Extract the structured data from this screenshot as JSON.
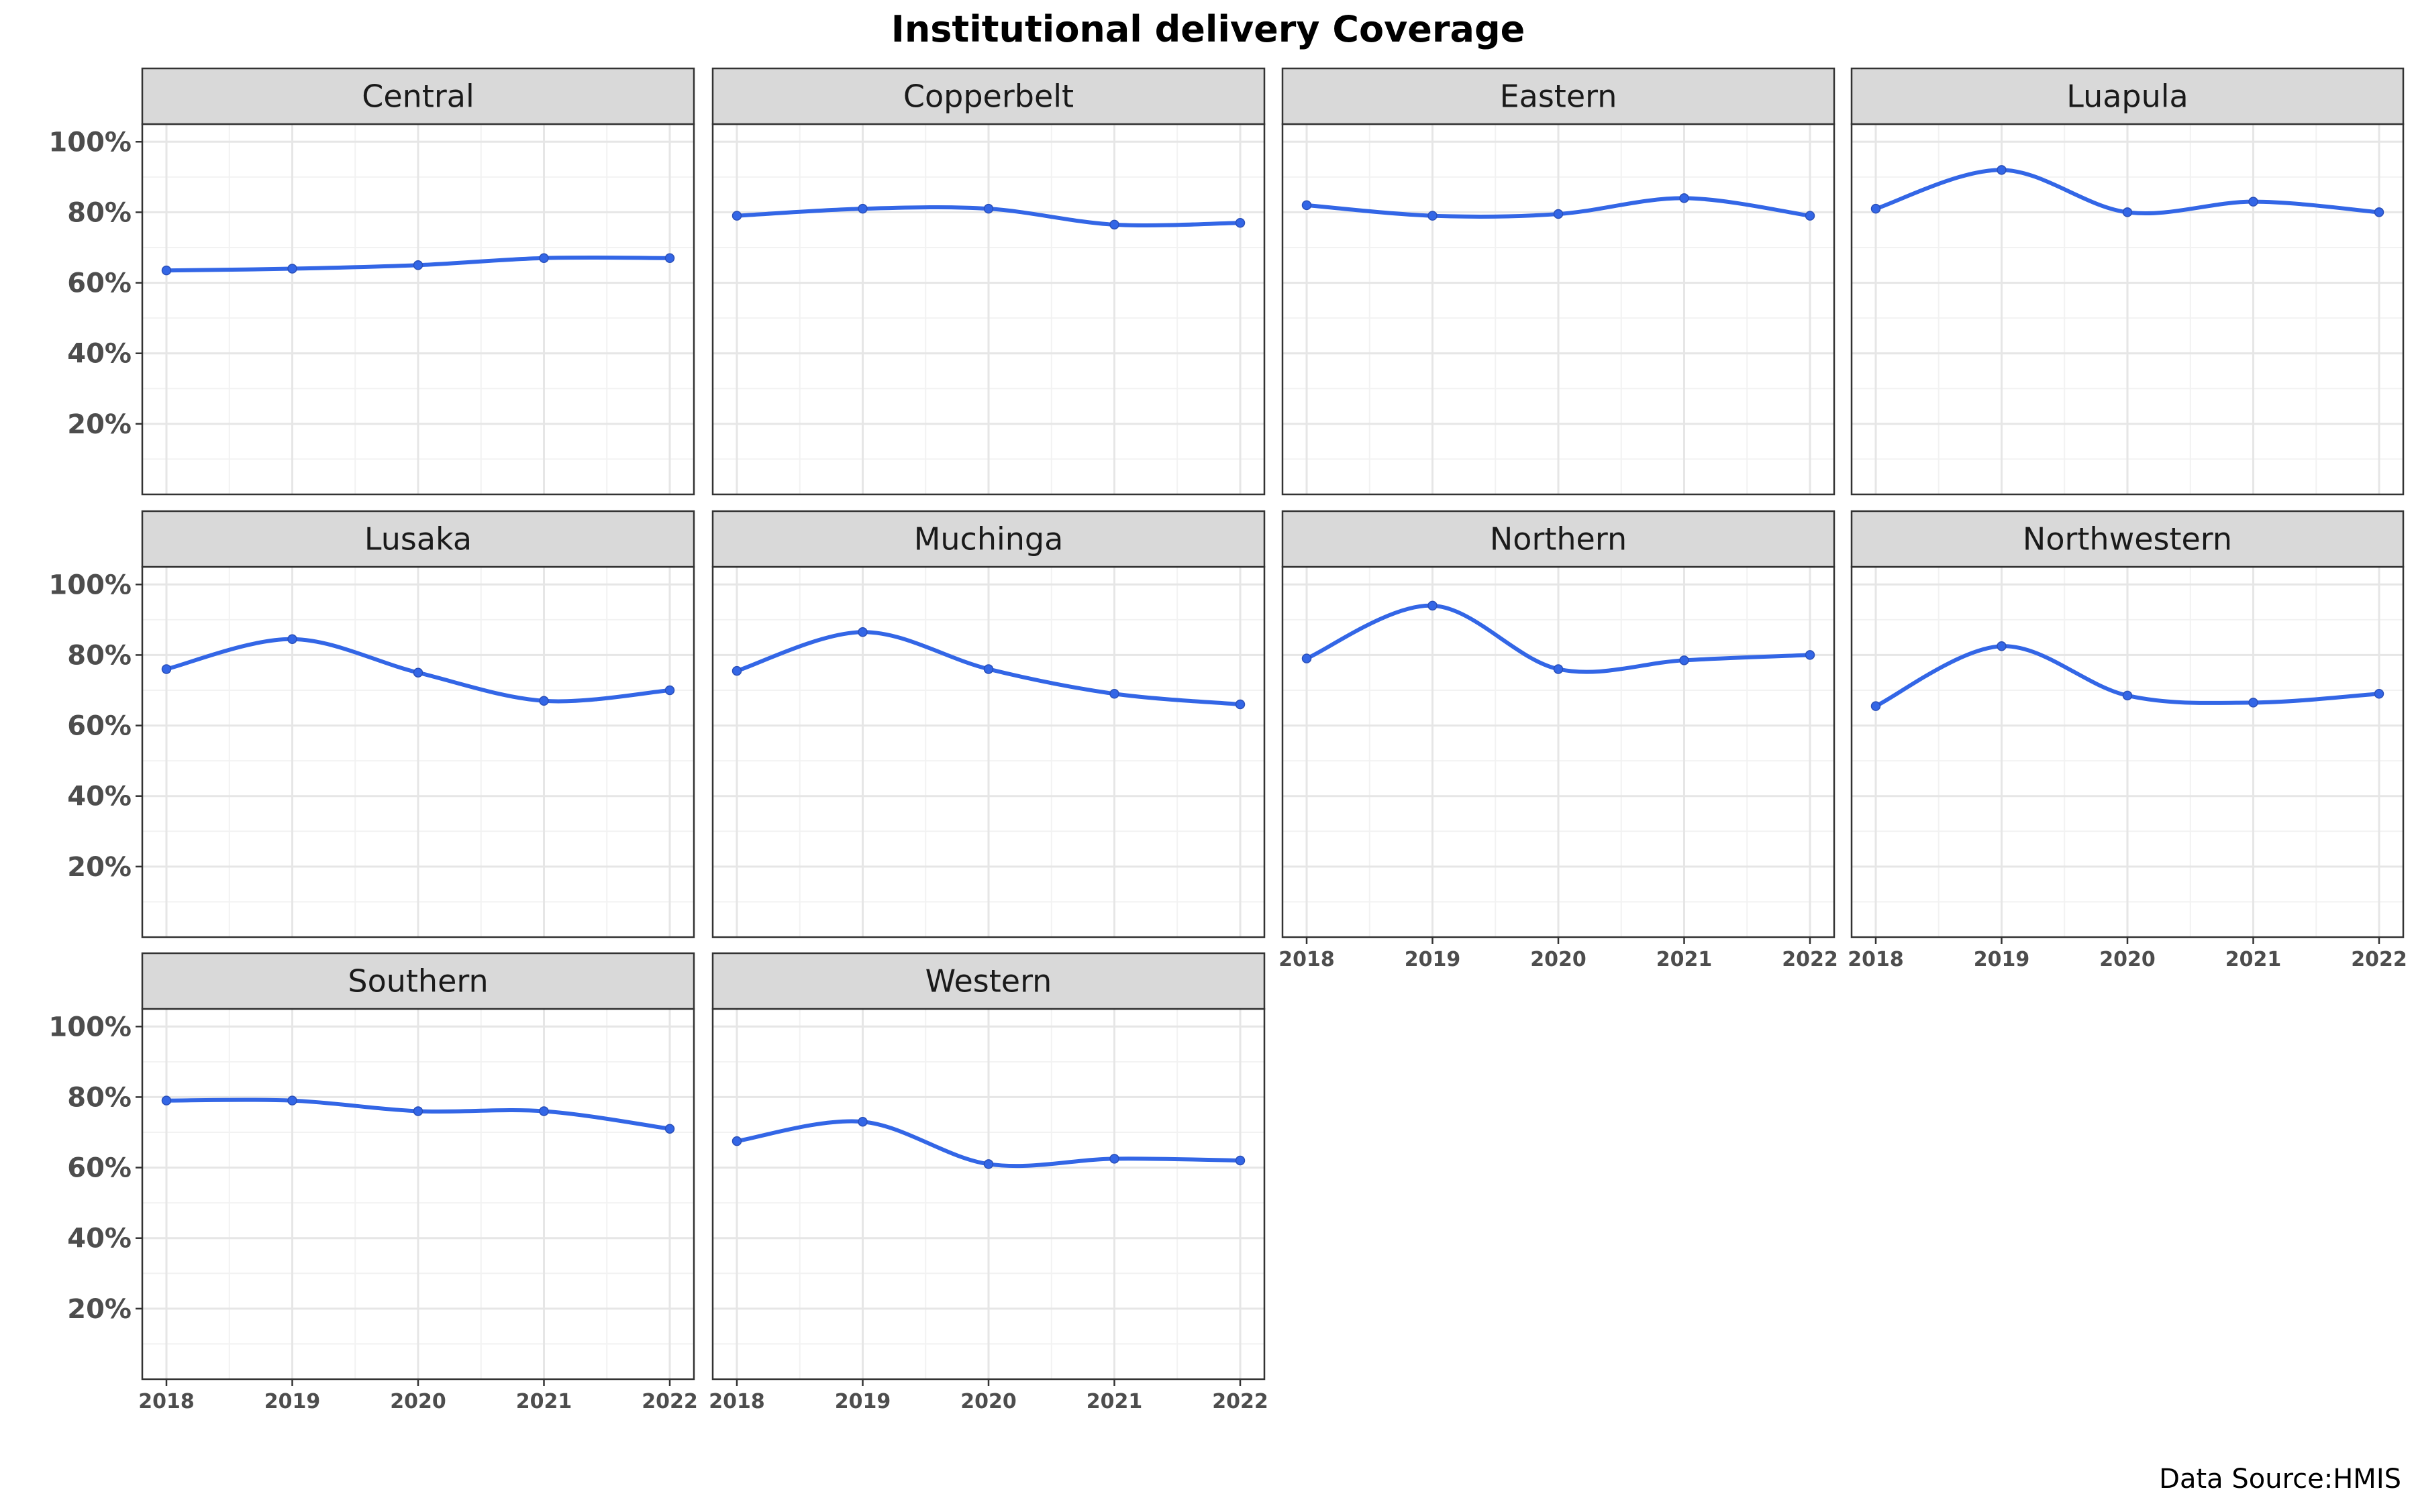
{
  "chart_data": {
    "type": "line",
    "title": "Institutional delivery Coverage",
    "caption": "Data Source:HMIS",
    "x": [
      "2018",
      "2019",
      "2020",
      "2021",
      "2022"
    ],
    "y_ticks": [
      "20%",
      "40%",
      "60%",
      "80%",
      "100%"
    ],
    "ylim": [
      0,
      105
    ],
    "line_color": "#3366E6",
    "facet_layout": "4 columns x 3 rows, free x axis shown on bottom panel of each column",
    "panels": [
      {
        "name": "Central",
        "values": [
          63.5,
          64,
          65,
          67,
          67
        ]
      },
      {
        "name": "Copperbelt",
        "values": [
          79,
          81,
          81,
          76.5,
          77
        ]
      },
      {
        "name": "Eastern",
        "values": [
          82,
          79,
          79.5,
          84,
          79
        ]
      },
      {
        "name": "Luapula",
        "values": [
          81,
          92,
          80,
          83,
          80
        ]
      },
      {
        "name": "Lusaka",
        "values": [
          76,
          84.5,
          75,
          67,
          70
        ]
      },
      {
        "name": "Muchinga",
        "values": [
          75.5,
          86.5,
          76,
          69,
          66
        ]
      },
      {
        "name": "Northern",
        "values": [
          79,
          94,
          76,
          78.5,
          80
        ]
      },
      {
        "name": "Northwestern",
        "values": [
          65.5,
          82.5,
          68.5,
          66.5,
          69
        ]
      },
      {
        "name": "Southern",
        "values": [
          79,
          79,
          76,
          76,
          71
        ]
      },
      {
        "name": "Western",
        "values": [
          67.5,
          73,
          61,
          62.5,
          62
        ]
      }
    ]
  }
}
